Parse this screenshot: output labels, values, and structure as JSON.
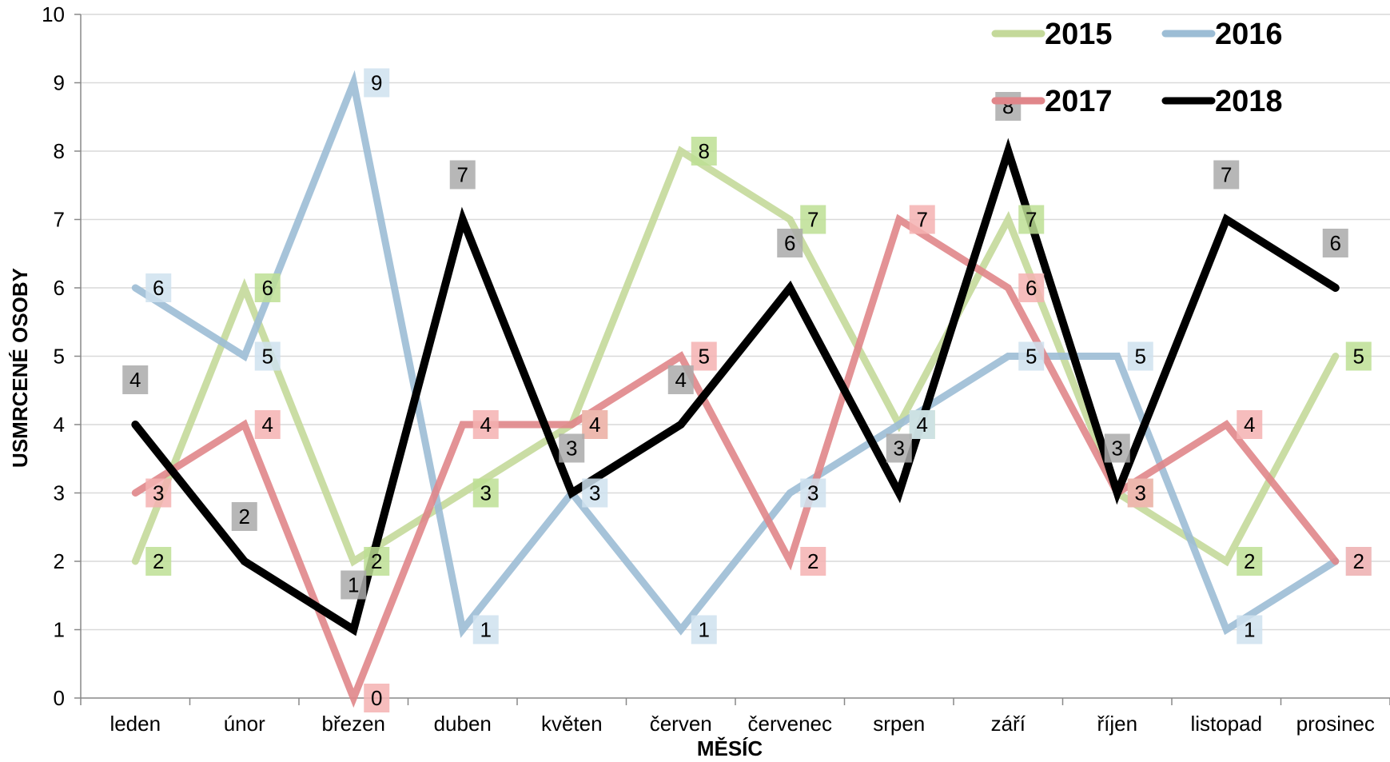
{
  "chart_data": {
    "type": "line",
    "title": "",
    "xlabel": "MĚSÍC",
    "ylabel": "USMRCENÉ OSOBY",
    "ylim": [
      0,
      10
    ],
    "yticks": [
      "0",
      "1",
      "2",
      "3",
      "4",
      "5",
      "6",
      "7",
      "8",
      "9",
      "10"
    ],
    "grid": true,
    "legend_position": "top-right",
    "categories": [
      "leden",
      "únor",
      "březen",
      "duben",
      "květen",
      "červen",
      "červenec",
      "srpen",
      "září",
      "říjen",
      "listopad",
      "prosinec"
    ],
    "series": [
      {
        "name": "2015",
        "color": "#c4d99a",
        "label_color": "#bddf94",
        "values": [
          2,
          6,
          2,
          3,
          4,
          8,
          7,
          4,
          7,
          3,
          2,
          5
        ]
      },
      {
        "name": "2016",
        "color": "#9cbdd5",
        "label_color": "#cfe2ef",
        "values": [
          6,
          5,
          9,
          1,
          3,
          1,
          3,
          4,
          5,
          5,
          1,
          2
        ]
      },
      {
        "name": "2017",
        "color": "#e0868a",
        "label_color": "#f5b2b2",
        "values": [
          3,
          4,
          0,
          4,
          4,
          5,
          2,
          7,
          6,
          3,
          4,
          2
        ]
      },
      {
        "name": "2018",
        "color": "#000000",
        "label_color": "#aaaaaa",
        "values": [
          4,
          2,
          1,
          7,
          3,
          4,
          6,
          3,
          8,
          3,
          7,
          6
        ]
      }
    ]
  }
}
